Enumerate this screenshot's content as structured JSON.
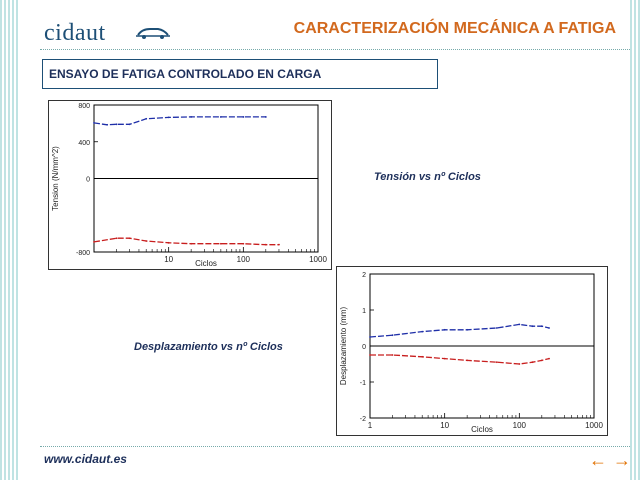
{
  "header": {
    "logo_text": "cidaut",
    "title": "CARACTERIZACIÓN MECÁNICA A FATIGA"
  },
  "section": {
    "subtitle": "ENSAYO DE FATIGA CONTROLADO EN CARGA"
  },
  "captions": {
    "tension": "Tensión vs nº Ciclos",
    "displacement": "Desplazamiento vs nº Ciclos"
  },
  "footer": {
    "url": "www.cidaut.es"
  },
  "colors": {
    "accent": "#d2691e",
    "brand": "#1d4f76",
    "series_max": "#1f2fa8",
    "series_min": "#c81e1e"
  },
  "icons": {
    "prev": "arrow-left-icon",
    "next": "arrow-right-icon"
  },
  "chart_data": [
    {
      "type": "line",
      "x_scale": "log",
      "xlim": [
        1,
        1000
      ],
      "ylim": [
        -800,
        800
      ],
      "xlabel": "Ciclos",
      "ylabel": "Tension (N/mm^2)",
      "x_ticks": [
        "10",
        "100",
        "1000"
      ],
      "y_ticks": [
        "800",
        "400",
        "0",
        "-800"
      ],
      "series": [
        {
          "x": [
            1,
            1.5,
            2,
            3,
            5,
            10,
            20,
            50,
            100,
            200
          ],
          "values": [
            605,
            585,
            590,
            590,
            650,
            665,
            670,
            670,
            670,
            670
          ]
        },
        {
          "x": [
            1,
            2,
            3,
            5,
            10,
            20,
            50,
            100,
            200,
            300
          ],
          "values": [
            -690,
            -650,
            -650,
            -680,
            -700,
            -710,
            -710,
            -710,
            -720,
            -720
          ]
        }
      ]
    },
    {
      "type": "line",
      "x_scale": "log",
      "xlim": [
        1,
        1000
      ],
      "ylim": [
        -2,
        2
      ],
      "xlabel": "Ciclos",
      "ylabel": "Desplazamiento (mm)",
      "x_ticks": [
        "1",
        "10",
        "100",
        "1000"
      ],
      "y_ticks": [
        "2",
        "1",
        "0",
        "-1",
        "-2"
      ],
      "series": [
        {
          "x": [
            1,
            2,
            5,
            10,
            20,
            50,
            100,
            150,
            200,
            250
          ],
          "values": [
            0.25,
            0.3,
            0.4,
            0.45,
            0.45,
            0.5,
            0.6,
            0.55,
            0.55,
            0.5
          ]
        },
        {
          "x": [
            1,
            2,
            5,
            10,
            20,
            50,
            100,
            150,
            200,
            250
          ],
          "values": [
            -0.25,
            -0.25,
            -0.3,
            -0.35,
            -0.4,
            -0.45,
            -0.5,
            -0.45,
            -0.4,
            -0.35
          ]
        }
      ]
    }
  ]
}
